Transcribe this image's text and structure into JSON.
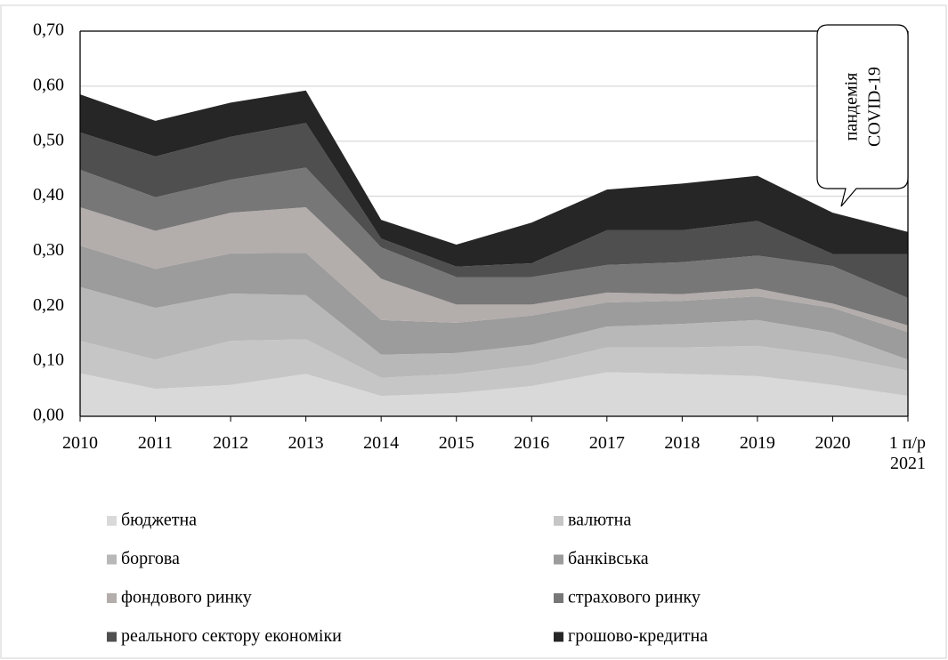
{
  "chart_data": {
    "type": "stacked_area",
    "categories": [
      "2010",
      "2011",
      "2012",
      "2013",
      "2014",
      "2015",
      "2016",
      "2017",
      "2018",
      "2019",
      "2020",
      "1 п/р 2021"
    ],
    "series": [
      {
        "name": "бюджетна",
        "color": "#d9d9d9",
        "values": [
          0.078,
          0.05,
          0.057,
          0.077,
          0.037,
          0.042,
          0.055,
          0.08,
          0.077,
          0.073,
          0.057,
          0.037
        ]
      },
      {
        "name": "валютна",
        "color": "#c6c6c6",
        "values": [
          0.059,
          0.053,
          0.08,
          0.063,
          0.033,
          0.035,
          0.038,
          0.045,
          0.048,
          0.055,
          0.053,
          0.046
        ]
      },
      {
        "name": "боргова",
        "color": "#b8b8b8",
        "values": [
          0.098,
          0.094,
          0.086,
          0.08,
          0.042,
          0.038,
          0.037,
          0.038,
          0.043,
          0.047,
          0.042,
          0.02
        ]
      },
      {
        "name": "банківська",
        "color": "#9c9c9c",
        "values": [
          0.075,
          0.071,
          0.073,
          0.077,
          0.063,
          0.055,
          0.053,
          0.044,
          0.042,
          0.043,
          0.045,
          0.05
        ]
      },
      {
        "name": "фондового ринку",
        "color": "#b3adab",
        "values": [
          0.07,
          0.069,
          0.074,
          0.083,
          0.075,
          0.033,
          0.02,
          0.018,
          0.012,
          0.014,
          0.008,
          0.012
        ]
      },
      {
        "name": "страхового ринку",
        "color": "#777777",
        "values": [
          0.068,
          0.061,
          0.06,
          0.072,
          0.057,
          0.05,
          0.05,
          0.05,
          0.058,
          0.06,
          0.068,
          0.05
        ]
      },
      {
        "name": "реального сектору економіки",
        "color": "#4f4f4f",
        "values": [
          0.068,
          0.074,
          0.078,
          0.081,
          0.016,
          0.019,
          0.025,
          0.063,
          0.058,
          0.063,
          0.022,
          0.08
        ]
      },
      {
        "name": "грошово-кредитна",
        "color": "#262626",
        "values": [
          0.069,
          0.065,
          0.062,
          0.059,
          0.034,
          0.04,
          0.074,
          0.074,
          0.085,
          0.082,
          0.075,
          0.04
        ]
      }
    ],
    "ylim": [
      0,
      0.7
    ],
    "yticks": [
      {
        "value": 0,
        "label": "0,00"
      },
      {
        "value": 0.1,
        "label": "0,10"
      },
      {
        "value": 0.2,
        "label": "0,20"
      },
      {
        "value": 0.3,
        "label": "0,30"
      },
      {
        "value": 0.4,
        "label": "0,40"
      },
      {
        "value": 0.5,
        "label": "0,50"
      },
      {
        "value": 0.6,
        "label": "0,60"
      },
      {
        "value": 0.7,
        "label": "0,70"
      }
    ],
    "grid": true,
    "annotation": [
      "пандемія",
      "COVID-19"
    ]
  }
}
